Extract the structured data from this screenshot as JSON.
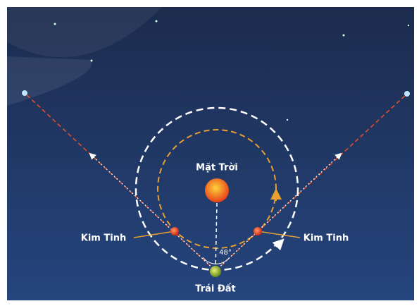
{
  "labels": {
    "sun": "Mặt Trời",
    "venus_left": "Kim Tinh",
    "venus_right": "Kim Tinh",
    "earth": "Trái Đất",
    "angle": "48°"
  }
}
